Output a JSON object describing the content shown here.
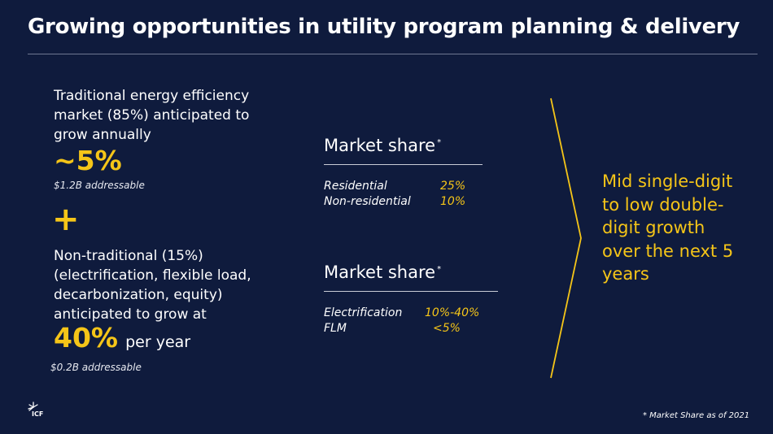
{
  "title": "Growing opportunities in utility program planning & delivery",
  "traditional": {
    "description": "Traditional energy efficiency market (85%) anticipated to grow annually",
    "growth": "~5%",
    "addressable": "$1.2B addressable"
  },
  "plus_sign": "+",
  "non_traditional": {
    "description": "Non-traditional (15%) (electrification, flexible load, decarbonization, equity) anticipated to grow at",
    "growth": "40%",
    "growth_suffix": "per year",
    "addressable": "$0.2B addressable"
  },
  "market_share_1": {
    "title": "Market share",
    "marker": "*",
    "rows": [
      {
        "label": "Residential",
        "value": "25%"
      },
      {
        "label": "Non-residential",
        "value": "10%"
      }
    ]
  },
  "market_share_2": {
    "title": "Market share",
    "marker": "*",
    "rows": [
      {
        "label": "Electrification",
        "value": "10%-40%"
      },
      {
        "label": "FLM",
        "value": "<5%"
      }
    ]
  },
  "growth_summary": "Mid single-digit to low double-digit growth over the next 5 years",
  "footnote": "* Market Share as of 2021",
  "logo_text": "ICF",
  "colors": {
    "background": "#0f1b3d",
    "accent": "#f5c518",
    "text": "#ffffff"
  }
}
